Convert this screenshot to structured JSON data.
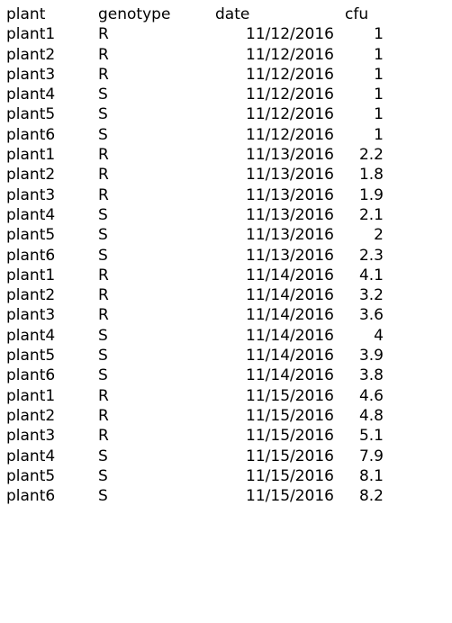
{
  "table": {
    "headers": [
      "plant",
      "genotype",
      "date",
      "cfu"
    ],
    "rows": [
      [
        "plant1",
        "R",
        "11/12/2016",
        "1"
      ],
      [
        "plant2",
        "R",
        "11/12/2016",
        "1"
      ],
      [
        "plant3",
        "R",
        "11/12/2016",
        "1"
      ],
      [
        "plant4",
        "S",
        "11/12/2016",
        "1"
      ],
      [
        "plant5",
        "S",
        "11/12/2016",
        "1"
      ],
      [
        "plant6",
        "S",
        "11/12/2016",
        "1"
      ],
      [
        "plant1",
        "R",
        "11/13/2016",
        "2.2"
      ],
      [
        "plant2",
        "R",
        "11/13/2016",
        "1.8"
      ],
      [
        "plant3",
        "R",
        "11/13/2016",
        "1.9"
      ],
      [
        "plant4",
        "S",
        "11/13/2016",
        "2.1"
      ],
      [
        "plant5",
        "S",
        "11/13/2016",
        "2"
      ],
      [
        "plant6",
        "S",
        "11/13/2016",
        "2.3"
      ],
      [
        "plant1",
        "R",
        "11/14/2016",
        "4.1"
      ],
      [
        "plant2",
        "R",
        "11/14/2016",
        "3.2"
      ],
      [
        "plant3",
        "R",
        "11/14/2016",
        "3.6"
      ],
      [
        "plant4",
        "S",
        "11/14/2016",
        "4"
      ],
      [
        "plant5",
        "S",
        "11/14/2016",
        "3.9"
      ],
      [
        "plant6",
        "S",
        "11/14/2016",
        "3.8"
      ],
      [
        "plant1",
        "R",
        "11/15/2016",
        "4.6"
      ],
      [
        "plant2",
        "R",
        "11/15/2016",
        "4.8"
      ],
      [
        "plant3",
        "R",
        "11/15/2016",
        "5.1"
      ],
      [
        "plant4",
        "S",
        "11/15/2016",
        "7.9"
      ],
      [
        "plant5",
        "S",
        "11/15/2016",
        "8.1"
      ],
      [
        "plant6",
        "S",
        "11/15/2016",
        "8.2"
      ]
    ]
  },
  "chart_data": {
    "type": "table",
    "columns": [
      "plant",
      "genotype",
      "date",
      "cfu"
    ],
    "rows": [
      [
        "plant1",
        "R",
        "11/12/2016",
        1
      ],
      [
        "plant2",
        "R",
        "11/12/2016",
        1
      ],
      [
        "plant3",
        "R",
        "11/12/2016",
        1
      ],
      [
        "plant4",
        "S",
        "11/12/2016",
        1
      ],
      [
        "plant5",
        "S",
        "11/12/2016",
        1
      ],
      [
        "plant6",
        "S",
        "11/12/2016",
        1
      ],
      [
        "plant1",
        "R",
        "11/13/2016",
        2.2
      ],
      [
        "plant2",
        "R",
        "11/13/2016",
        1.8
      ],
      [
        "plant3",
        "R",
        "11/13/2016",
        1.9
      ],
      [
        "plant4",
        "S",
        "11/13/2016",
        2.1
      ],
      [
        "plant5",
        "S",
        "11/13/2016",
        2
      ],
      [
        "plant6",
        "S",
        "11/13/2016",
        2.3
      ],
      [
        "plant1",
        "R",
        "11/14/2016",
        4.1
      ],
      [
        "plant2",
        "R",
        "11/14/2016",
        3.2
      ],
      [
        "plant3",
        "R",
        "11/14/2016",
        3.6
      ],
      [
        "plant4",
        "S",
        "11/14/2016",
        4
      ],
      [
        "plant5",
        "S",
        "11/14/2016",
        3.9
      ],
      [
        "plant6",
        "S",
        "11/14/2016",
        3.8
      ],
      [
        "plant1",
        "R",
        "11/15/2016",
        4.6
      ],
      [
        "plant2",
        "R",
        "11/15/2016",
        4.8
      ],
      [
        "plant3",
        "R",
        "11/15/2016",
        5.1
      ],
      [
        "plant4",
        "S",
        "11/15/2016",
        7.9
      ],
      [
        "plant5",
        "S",
        "11/15/2016",
        8.1
      ],
      [
        "plant6",
        "S",
        "11/15/2016",
        8.2
      ]
    ]
  }
}
